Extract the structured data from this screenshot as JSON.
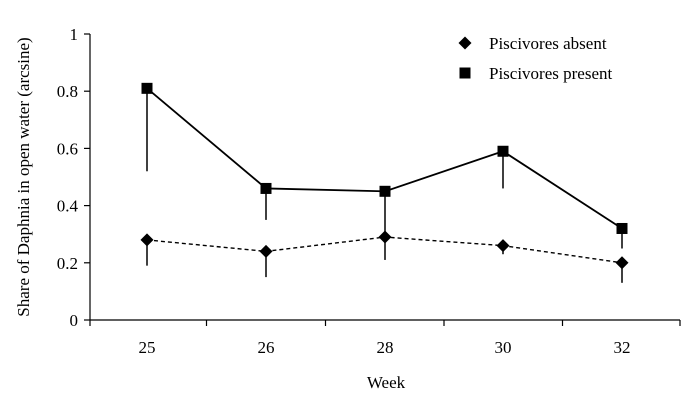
{
  "chart_data": {
    "type": "line",
    "title": "",
    "xlabel": "Week",
    "ylabel": "Share of Daphnia in open water (arcsine)",
    "categories": [
      "25",
      "26",
      "28",
      "30",
      "32"
    ],
    "ylim": [
      0,
      1
    ],
    "yticks": [
      "0",
      "0.2",
      "0.4",
      "0.6",
      "0.8",
      "1"
    ],
    "grid": false,
    "legend_position": "top-right",
    "series": [
      {
        "name": "Piscivores absent",
        "marker": "diamond",
        "line_style": "dashed",
        "color": "#000000",
        "values": [
          0.28,
          0.24,
          0.29,
          0.26,
          0.2
        ],
        "error_lower": [
          0.19,
          0.15,
          0.21,
          0.23,
          0.13
        ]
      },
      {
        "name": "Piscivores present",
        "marker": "square",
        "line_style": "solid",
        "color": "#000000",
        "values": [
          0.81,
          0.46,
          0.45,
          0.59,
          0.32
        ],
        "error_lower": [
          0.52,
          0.35,
          0.3,
          0.46,
          0.25
        ]
      }
    ]
  }
}
